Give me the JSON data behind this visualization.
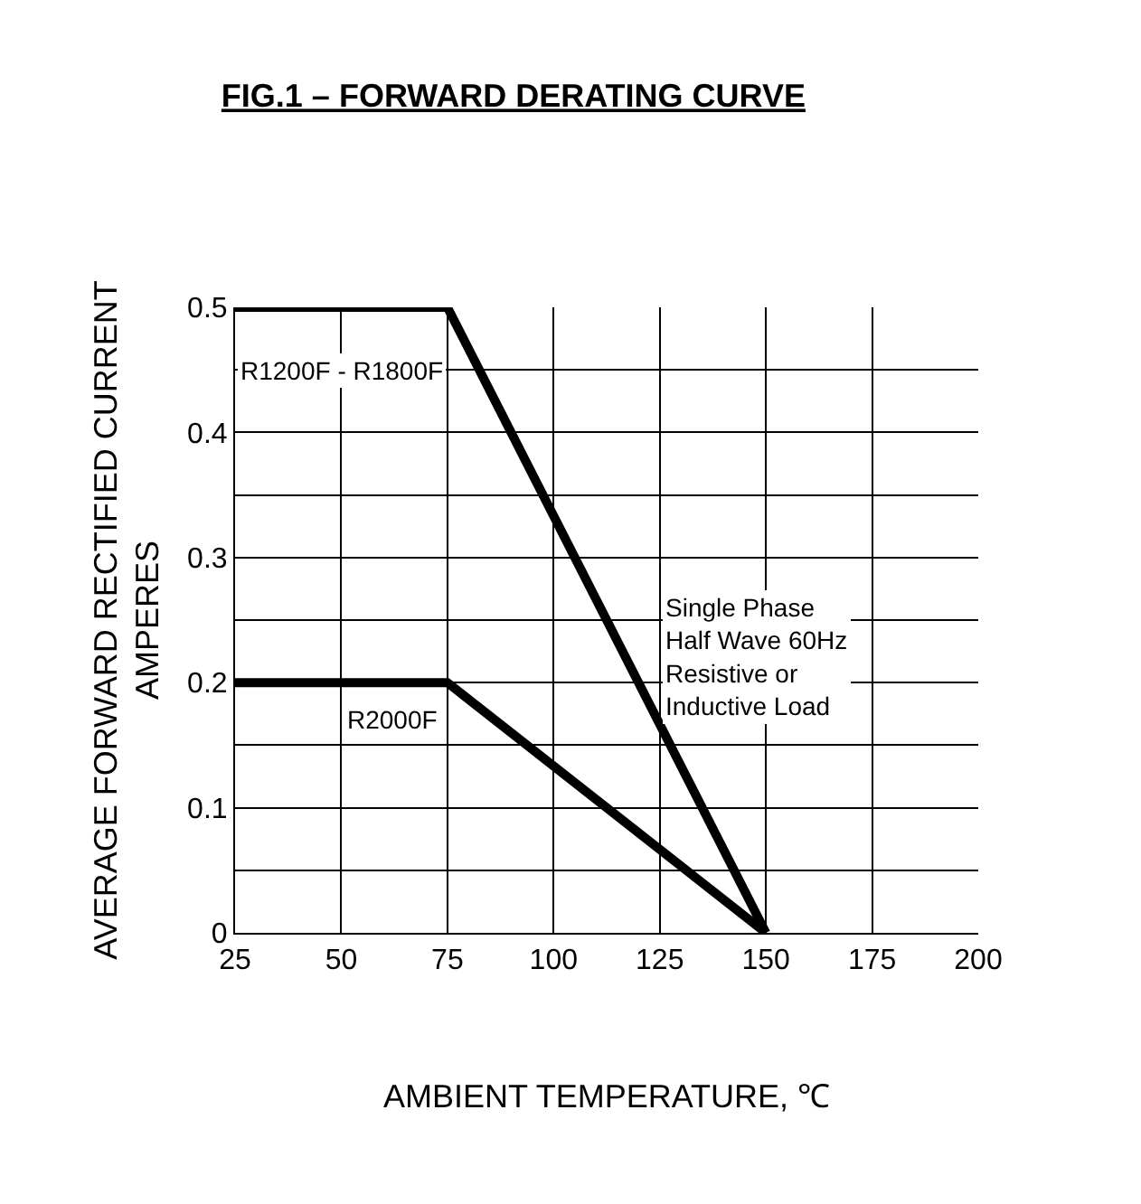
{
  "chart_data": {
    "type": "line",
    "title": "FIG.1 – FORWARD DERATING CURVE",
    "xlabel": "AMBIENT TEMPERATURE, ℃",
    "ylabel": "AVERAGE FORWARD RECTIFIED CURRENT\nAMPERES",
    "x": [
      25,
      75,
      150
    ],
    "series": [
      {
        "name": "R1200F - R1800F",
        "color": "#000000",
        "values": [
          0.5,
          0.5,
          0
        ]
      },
      {
        "name": "R2000F",
        "color": "#000000",
        "values": [
          0.2,
          0.2,
          0
        ]
      }
    ],
    "annotations": [
      "Single Phase\nHalf Wave 60Hz\nResistive or\nInductive Load"
    ],
    "xlim": [
      25,
      200
    ],
    "xticks": [
      25,
      50,
      75,
      100,
      125,
      150,
      175,
      200
    ],
    "ylim": [
      0,
      0.5
    ],
    "yticks": [
      0,
      {
        "value": 0.05,
        "label": null
      },
      0.1,
      {
        "value": 0.15,
        "label": null
      },
      0.2,
      {
        "value": 0.25,
        "label": null
      },
      0.3,
      {
        "value": 0.35,
        "label": null
      },
      0.4,
      {
        "value": 0.45,
        "label": null
      },
      0.5
    ],
    "grid": true,
    "legend": false,
    "marker": "none",
    "line_style": "solid"
  }
}
